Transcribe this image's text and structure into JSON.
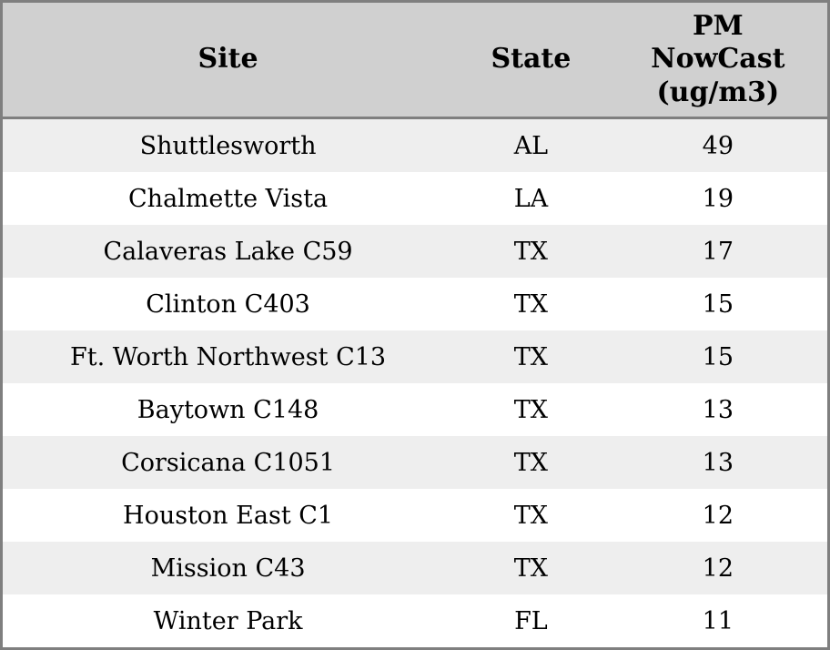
{
  "table": {
    "columns": {
      "site": "Site",
      "state": "State",
      "pm": "PM\nNowCast\n(ug/m3)"
    },
    "rows": [
      {
        "site": "Shuttlesworth",
        "state": "AL",
        "pm": "49"
      },
      {
        "site": "Chalmette Vista",
        "state": "LA",
        "pm": "19"
      },
      {
        "site": "Calaveras Lake C59",
        "state": "TX",
        "pm": "17"
      },
      {
        "site": "Clinton C403",
        "state": "TX",
        "pm": "15"
      },
      {
        "site": "Ft. Worth Northwest C13",
        "state": "TX",
        "pm": "15"
      },
      {
        "site": "Baytown C148",
        "state": "TX",
        "pm": "13"
      },
      {
        "site": "Corsicana C1051",
        "state": "TX",
        "pm": "13"
      },
      {
        "site": "Houston East C1",
        "state": "TX",
        "pm": "12"
      },
      {
        "site": "Mission C43",
        "state": "TX",
        "pm": "12"
      },
      {
        "site": "Winter Park",
        "state": "FL",
        "pm": "11"
      }
    ]
  },
  "chart_data": {
    "type": "table",
    "title": "",
    "columns": [
      "Site",
      "State",
      "PM NowCast (ug/m3)"
    ],
    "rows": [
      [
        "Shuttlesworth",
        "AL",
        49
      ],
      [
        "Chalmette Vista",
        "LA",
        19
      ],
      [
        "Calaveras Lake C59",
        "TX",
        17
      ],
      [
        "Clinton C403",
        "TX",
        15
      ],
      [
        "Ft. Worth Northwest C13",
        "TX",
        15
      ],
      [
        "Baytown C148",
        "TX",
        13
      ],
      [
        "Corsicana C1051",
        "TX",
        13
      ],
      [
        "Houston East C1",
        "TX",
        12
      ],
      [
        "Mission C43",
        "TX",
        12
      ],
      [
        "Winter Park",
        "FL",
        11
      ]
    ]
  },
  "colors": {
    "header_bg": "#d0d0d0",
    "row_stripe_bg": "#eeeeee",
    "row_bg": "#ffffff",
    "border": "#7f7f7f",
    "text": "#000000"
  }
}
